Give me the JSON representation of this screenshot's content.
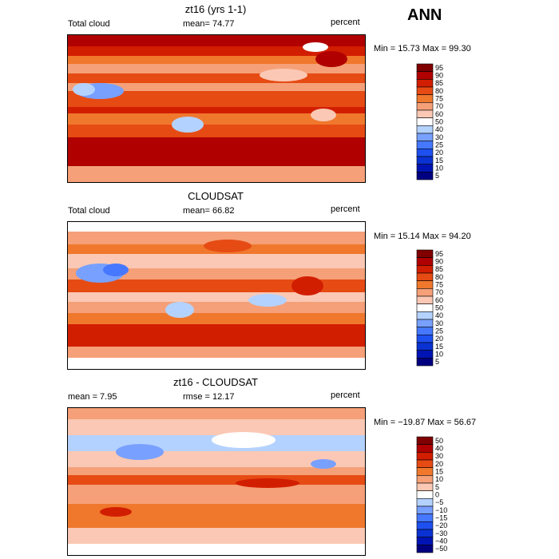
{
  "season": "ANN",
  "chart_data": [
    {
      "type": "heatmap",
      "title": "zt16 (yrs 1-1)",
      "left_label": "Total cloud",
      "center_label": "mean=  74.77",
      "right_label": "percent",
      "minmax": "Min =  15.73 Max =  99.30",
      "levels": [
        "95",
        "90",
        "85",
        "80",
        "75",
        "70",
        "60",
        "50",
        "40",
        "30",
        "25",
        "20",
        "15",
        "10",
        "5"
      ],
      "colors": [
        "#800000",
        "#b00000",
        "#d21e00",
        "#e64b14",
        "#f0782d",
        "#f5a078",
        "#fac8b4",
        "#ffffff",
        "#b4d2ff",
        "#78a0ff",
        "#4678ff",
        "#1e50f0",
        "#0a32d2",
        "#0014b4",
        "#000080"
      ]
    },
    {
      "type": "heatmap",
      "title": "CLOUDSAT",
      "left_label": "Total cloud",
      "center_label": "mean=  66.82",
      "right_label": "percent",
      "minmax": "Min =  15.14 Max =  94.20",
      "levels": [
        "95",
        "90",
        "85",
        "80",
        "75",
        "70",
        "60",
        "50",
        "40",
        "30",
        "25",
        "20",
        "15",
        "10",
        "5"
      ],
      "colors": [
        "#800000",
        "#b00000",
        "#d21e00",
        "#e64b14",
        "#f0782d",
        "#f5a078",
        "#fac8b4",
        "#ffffff",
        "#b4d2ff",
        "#78a0ff",
        "#4678ff",
        "#1e50f0",
        "#0a32d2",
        "#0014b4",
        "#000080"
      ]
    },
    {
      "type": "heatmap",
      "title": "zt16 - CLOUDSAT",
      "left_label": "mean =    7.95",
      "center_label": "rmse =   12.17",
      "right_label": "percent",
      "minmax": "Min = −19.87 Max =   56.67",
      "levels": [
        "50",
        "40",
        "30",
        "20",
        "15",
        "10",
        "5",
        "0",
        "−5",
        "−10",
        "−15",
        "−20",
        "−30",
        "−40",
        "−50"
      ],
      "colors": [
        "#800000",
        "#b00000",
        "#d21e00",
        "#e64b14",
        "#f0782d",
        "#f5a078",
        "#fac8b4",
        "#ffffff",
        "#b4d2ff",
        "#78a0ff",
        "#4678ff",
        "#1e50f0",
        "#0a32d2",
        "#0014b4",
        "#000080"
      ]
    }
  ]
}
